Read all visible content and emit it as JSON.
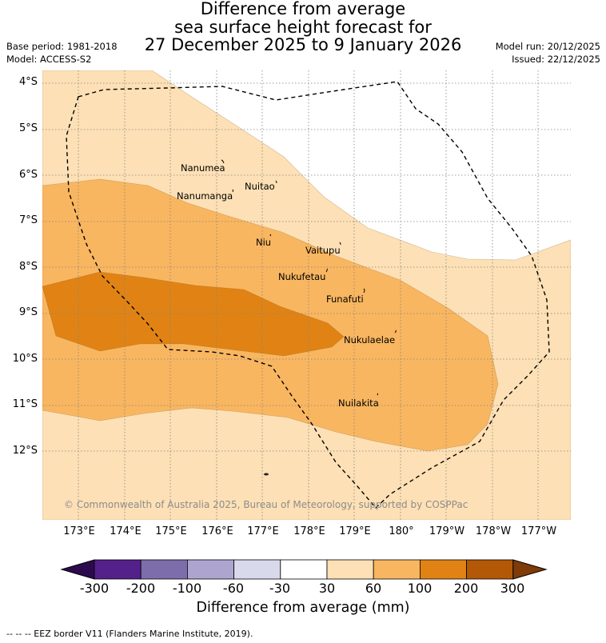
{
  "header": {
    "title_line1": "Difference from average",
    "title_line2": "sea surface height forecast for",
    "title_line3": "27 December 2025 to 9 January 2026",
    "base_period": "Base period: 1981-2018",
    "model": "Model: ACCESS-S2",
    "model_run": "Model run: 20/12/2025",
    "issued": "Issued: 22/12/2025"
  },
  "map": {
    "latitude_labels": [
      "4°S",
      "5°S",
      "6°S",
      "7°S",
      "8°S",
      "9°S",
      "10°S",
      "11°S",
      "12°S"
    ],
    "longitude_labels": [
      "173°E",
      "174°E",
      "175°E",
      "176°E",
      "177°E",
      "178°E",
      "179°E",
      "180°",
      "179°W",
      "178°W",
      "177°W"
    ],
    "islands": [
      {
        "name": "Nanumea"
      },
      {
        "name": "Nuitao"
      },
      {
        "name": "Nanumanga"
      },
      {
        "name": "Niu"
      },
      {
        "name": "Vaitupu"
      },
      {
        "name": "Nukufetau"
      },
      {
        "name": "Funafuti"
      },
      {
        "name": "Nukulaelae"
      },
      {
        "name": "Nuilakita"
      }
    ],
    "copyright": "© Commonwealth of Australia 2025, Bureau of Meteorology, supported by COSPPac",
    "colors": {
      "band_30_60": "#fde0b5",
      "band_60_100": "#f9b660",
      "band_100_200": "#e08314",
      "grid": "#808080",
      "eez": "#000000"
    }
  },
  "colorbar": {
    "title": "Difference from average (mm)",
    "tick_labels": [
      "-300",
      "-200",
      "-100",
      "-60",
      "-30",
      "30",
      "60",
      "100",
      "200",
      "300"
    ],
    "colors": [
      "#2d0a4e",
      "#54208a",
      "#7e6dab",
      "#ada5d0",
      "#d9d9ec",
      "#ffffff",
      "#fde0b5",
      "#f9b660",
      "#e08314",
      "#b35806",
      "#7f3b08"
    ]
  },
  "footer": {
    "eez_note": "--  --  -- EEZ border V11 (Flanders Marine Institute, 2019)."
  }
}
